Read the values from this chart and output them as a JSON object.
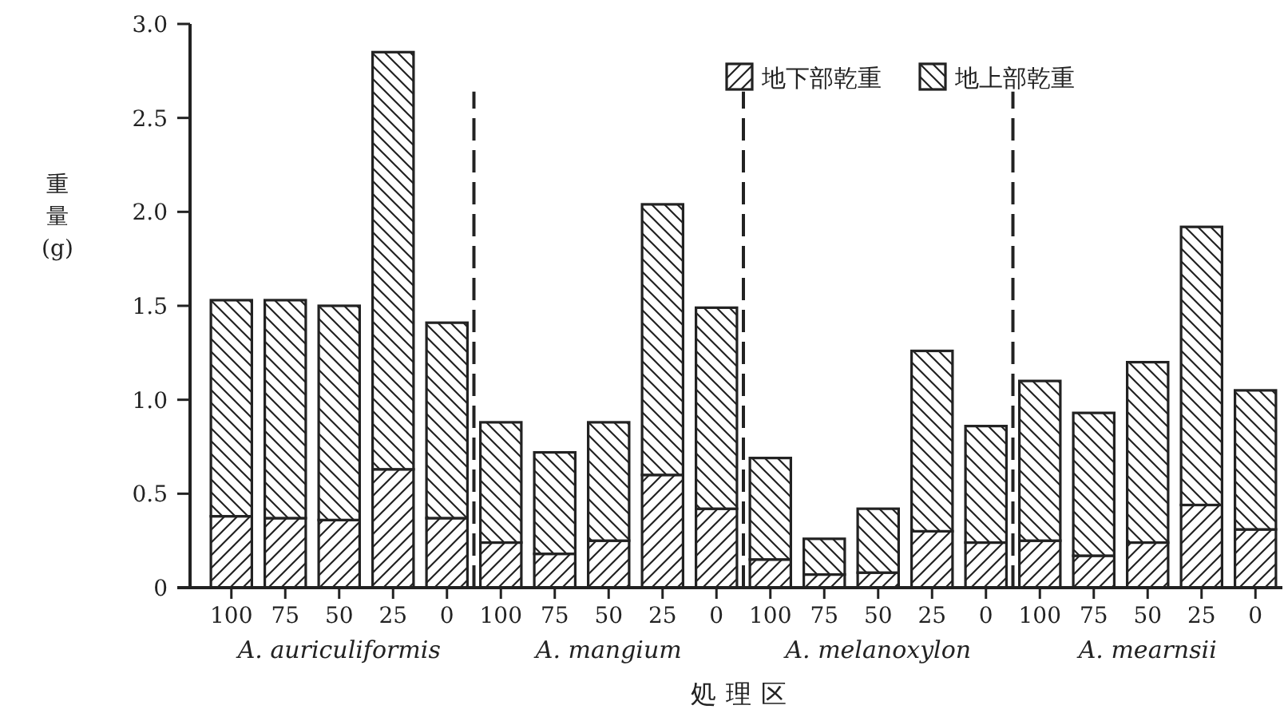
{
  "chart_data": {
    "type": "bar",
    "stacked": true,
    "categories": [
      "100",
      "75",
      "50",
      "25",
      "0",
      "100",
      "75",
      "50",
      "25",
      "0",
      "100",
      "75",
      "50",
      "25",
      "0",
      "100",
      "75",
      "50",
      "25",
      "0"
    ],
    "series": [
      {
        "name": "地下部乾重",
        "color": "#222222",
        "values": [
          0.38,
          0.37,
          0.36,
          0.63,
          0.37,
          0.24,
          0.18,
          0.25,
          0.6,
          0.42,
          0.15,
          0.07,
          0.08,
          0.3,
          0.24,
          0.25,
          0.17,
          0.24,
          0.44,
          0.31
        ]
      },
      {
        "name": "地上部乾重",
        "color": "#222222",
        "values": [
          1.15,
          1.16,
          1.14,
          2.22,
          1.04,
          0.64,
          0.54,
          0.63,
          1.44,
          1.07,
          0.54,
          0.19,
          0.34,
          0.96,
          0.62,
          0.85,
          0.76,
          0.96,
          1.48,
          0.74
        ]
      }
    ],
    "ylabel": "重量 (g)",
    "xlabel": "処理区",
    "annotations": [
      "A. auriculiformis",
      "A. mangium",
      "A. melanoxylon",
      "A. mearnsii"
    ],
    "ylim": [
      0,
      3.0
    ],
    "yticks": [
      0,
      0.5,
      {
        "value": 1,
        "label": "1.0"
      },
      1.5,
      {
        "value": 2,
        "label": "2.0"
      },
      2.5,
      {
        "value": 3,
        "label": "3.0"
      }
    ],
    "legend": "top right",
    "grid": false
  }
}
